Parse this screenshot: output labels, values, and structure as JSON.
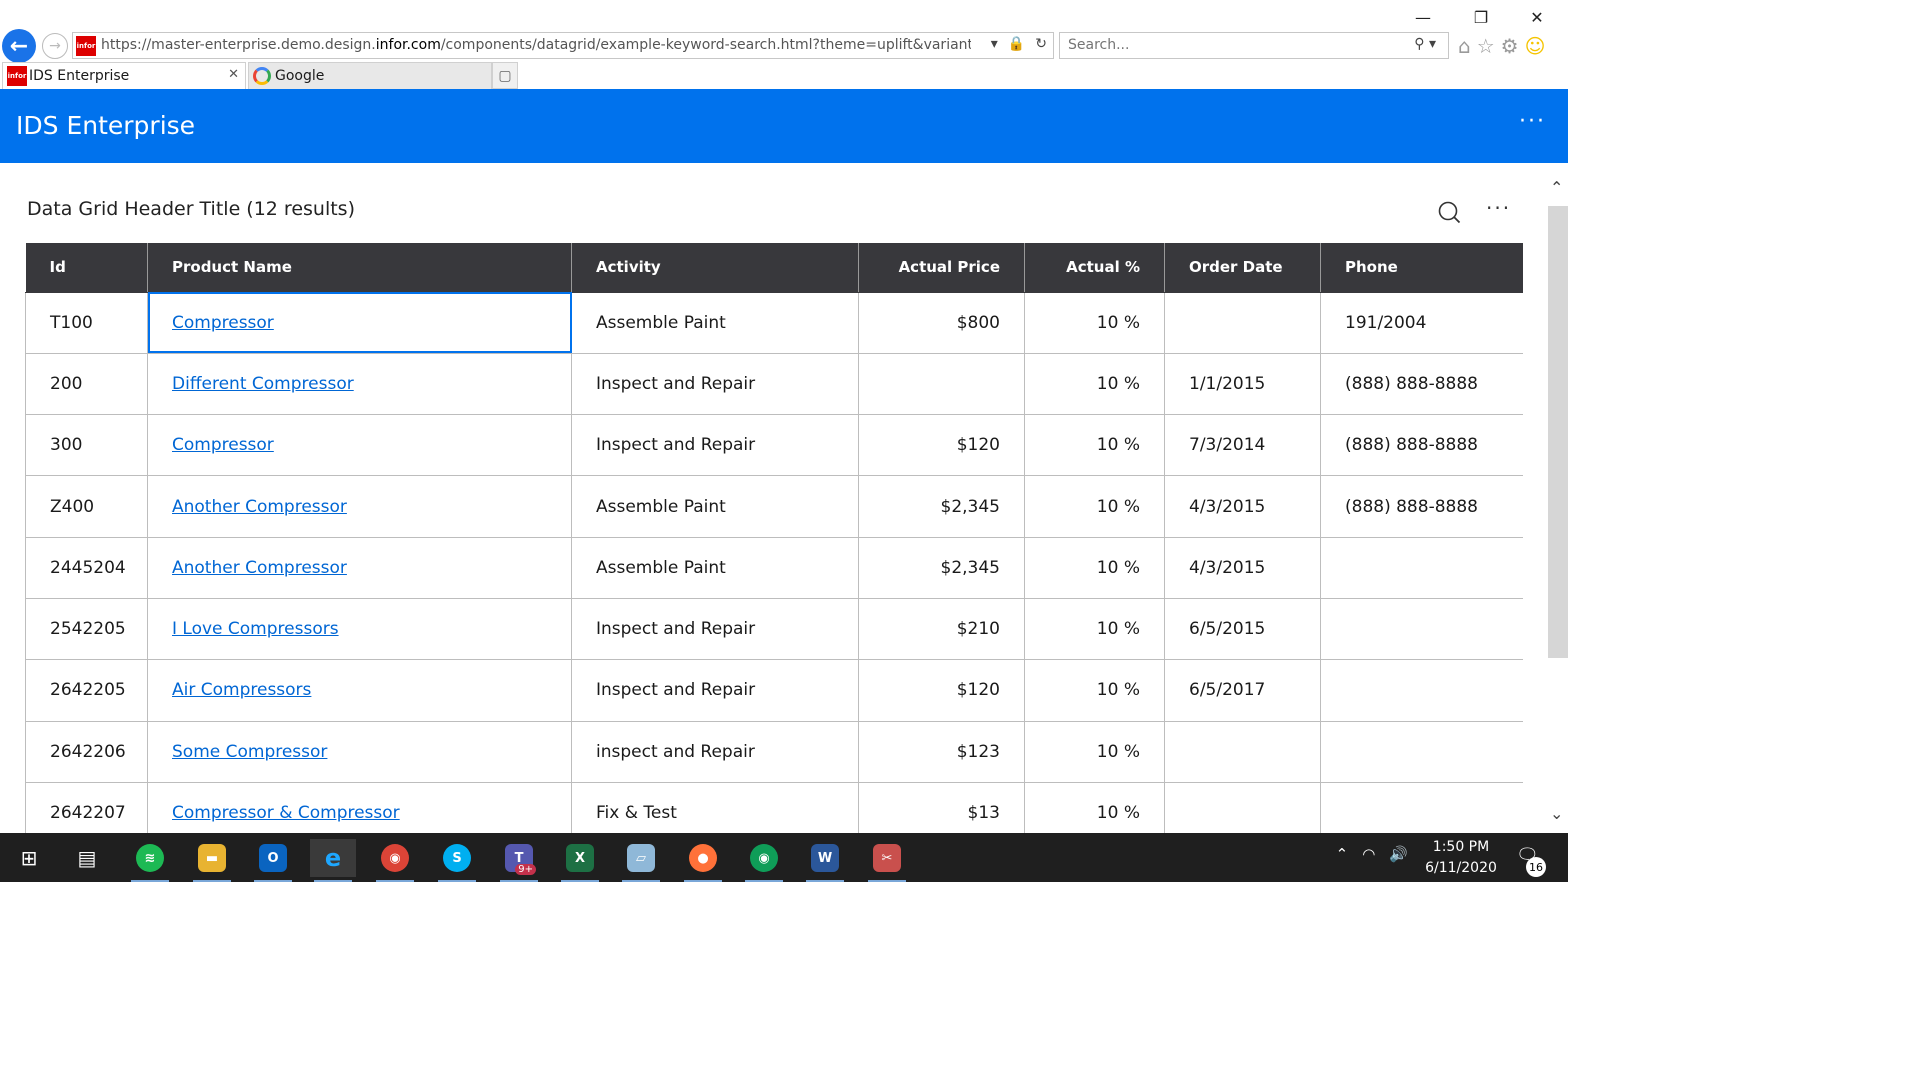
{
  "browser": {
    "url_prefix": "https://master-enterprise.demo.design.",
    "url_domain": "infor.com",
    "url_rest": "/components/datagrid/example-keyword-search.html?theme=uplift&variant=light&colo",
    "favicon_text": "infor",
    "search_placeholder": "Search...",
    "tabs": [
      {
        "label": "IDS Enterprise"
      },
      {
        "label": "Google"
      }
    ]
  },
  "app": {
    "title": "IDS Enterprise"
  },
  "grid": {
    "title": "Data Grid Header Title (12 results)",
    "columns": [
      "Id",
      "Product Name",
      "Activity",
      "Actual Price",
      "Actual %",
      "Order Date",
      "Phone"
    ],
    "rows": [
      {
        "id": "T100",
        "product": "Compressor",
        "activity": "Assemble Paint",
        "price": "$800",
        "percent": "10 %",
        "date": "",
        "phone": "191/2004"
      },
      {
        "id": "200",
        "product": "Different Compressor",
        "activity": "Inspect and Repair",
        "price": "",
        "percent": "10 %",
        "date": "1/1/2015",
        "phone": "(888) 888-8888"
      },
      {
        "id": "300",
        "product": "Compressor",
        "activity": "Inspect and Repair",
        "price": "$120",
        "percent": "10 %",
        "date": "7/3/2014",
        "phone": "(888) 888-8888"
      },
      {
        "id": "Z400",
        "product": "Another Compressor",
        "activity": "Assemble Paint",
        "price": "$2,345",
        "percent": "10 %",
        "date": "4/3/2015",
        "phone": "(888) 888-8888"
      },
      {
        "id": "2445204",
        "product": "Another Compressor",
        "activity": "Assemble Paint",
        "price": "$2,345",
        "percent": "10 %",
        "date": "4/3/2015",
        "phone": ""
      },
      {
        "id": "2542205",
        "product": "I Love Compressors",
        "activity": "Inspect and Repair",
        "price": "$210",
        "percent": "10 %",
        "date": "6/5/2015",
        "phone": ""
      },
      {
        "id": "2642205",
        "product": "Air Compressors",
        "activity": "Inspect and Repair",
        "price": "$120",
        "percent": "10 %",
        "date": "6/5/2017",
        "phone": ""
      },
      {
        "id": "2642206",
        "product": "Some Compressor",
        "activity": "inspect and Repair",
        "price": "$123",
        "percent": "10 %",
        "date": "",
        "phone": ""
      },
      {
        "id": "2642207",
        "product": "Compressor & Compressor",
        "activity": "Fix & Test",
        "price": "$13",
        "percent": "10 %",
        "date": "",
        "phone": ""
      }
    ]
  },
  "taskbar": {
    "time": "1:50 PM",
    "date": "6/11/2020",
    "notifications": "16",
    "teams_badge": "9+",
    "apps": [
      "windows-start",
      "task-view",
      "spotify",
      "file-explorer",
      "outlook",
      "internet-explorer",
      "chrome",
      "skype",
      "teams",
      "excel",
      "notepad",
      "firefox",
      "chrome-alt",
      "word",
      "snipping-tool"
    ]
  },
  "colors": {
    "accent": "#0072ed",
    "header_dark": "#38383c",
    "link": "#0066d4"
  }
}
